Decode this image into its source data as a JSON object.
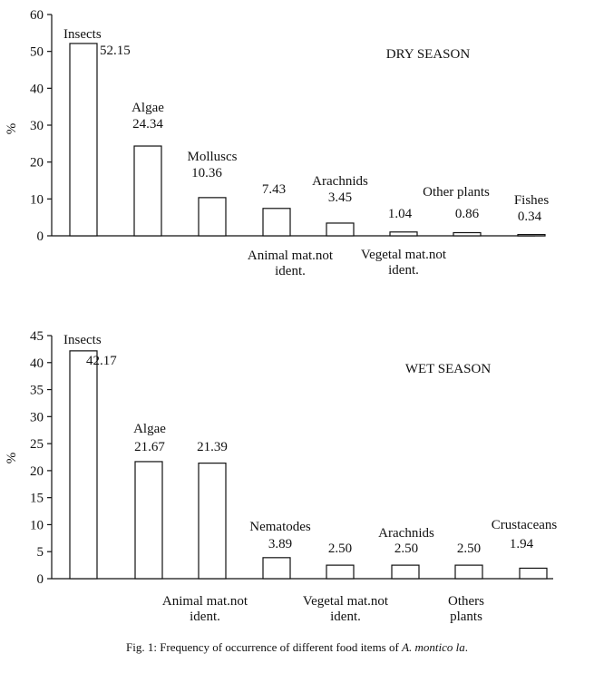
{
  "caption": {
    "prefix": "Fig. 1: Frequency of occurrence of different food items of ",
    "species": "A. montico la",
    "suffix": "."
  },
  "chart_data": [
    {
      "type": "bar",
      "title": "DRY SEASON",
      "ylabel": "%",
      "ylim": [
        0,
        60
      ],
      "yticks": [
        0,
        10,
        20,
        30,
        40,
        50,
        60
      ],
      "categories": [
        "Insects",
        "Algae",
        "Molluscs",
        "Animal mat.not ident.",
        "Arachnids",
        "Vegetal mat.not ident.",
        "Other plants",
        "Fishes"
      ],
      "values": [
        52.15,
        24.34,
        10.36,
        7.43,
        3.45,
        1.04,
        0.86,
        0.34
      ],
      "value_labels": [
        "52.15",
        "24.34",
        "10.36",
        "7.43",
        "3.45",
        "1.04",
        "0.86",
        "0.34"
      ],
      "label_position": [
        "above",
        "above",
        "above",
        "below",
        "above",
        "below",
        "above",
        "above"
      ]
    },
    {
      "type": "bar",
      "title": "WET SEASON",
      "ylabel": "%",
      "ylim": [
        0,
        45
      ],
      "yticks": [
        0,
        5,
        10,
        15,
        20,
        25,
        30,
        35,
        40,
        45
      ],
      "categories": [
        "Insects",
        "Algae",
        "Animal mat.not ident.",
        "Nematodes",
        "Vegetal mat.not ident.",
        "Arachnids",
        "Others plants",
        "Crustaceans"
      ],
      "values": [
        42.17,
        21.67,
        21.39,
        3.89,
        2.5,
        2.5,
        2.5,
        1.94
      ],
      "value_labels": [
        "42.17",
        "21.67",
        "21.39",
        "3.89",
        "2.50",
        "2.50",
        "2.50",
        "1.94"
      ],
      "label_position": [
        "above",
        "above",
        "below",
        "above",
        "below",
        "above",
        "below",
        "above"
      ]
    }
  ]
}
